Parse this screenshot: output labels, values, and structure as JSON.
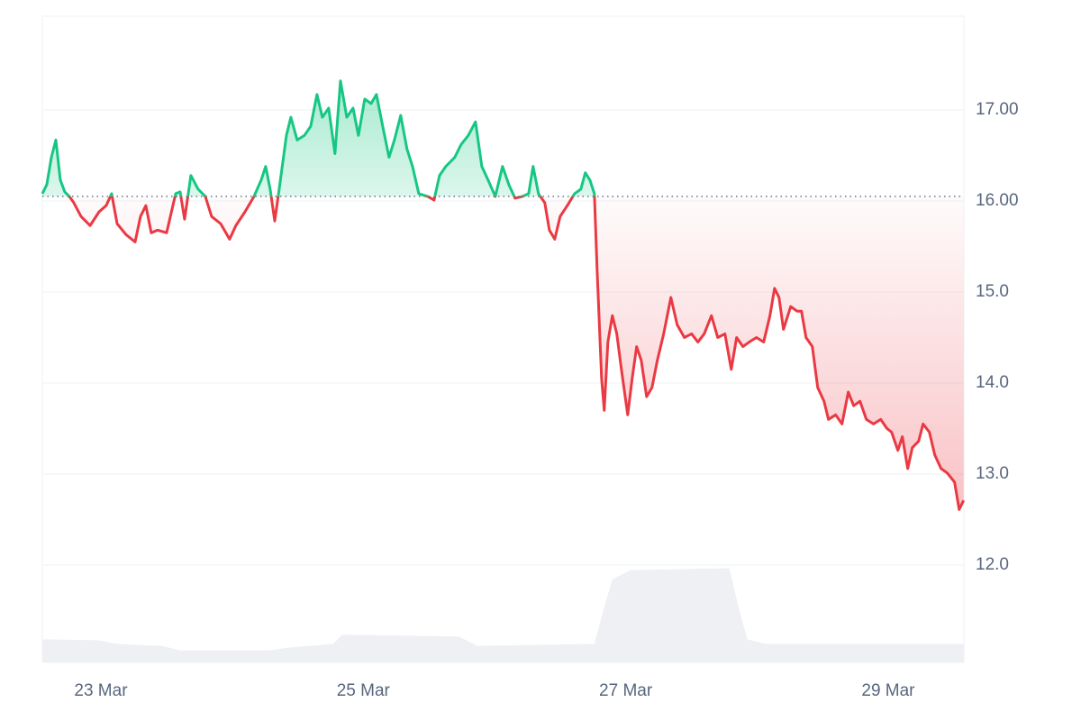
{
  "chart_data": {
    "type": "line",
    "x": [
      22.554,
      22.588,
      22.623,
      22.657,
      22.691,
      22.725,
      22.76,
      22.794,
      22.849,
      22.918,
      22.986,
      23.041,
      23.082,
      23.124,
      23.192,
      23.261,
      23.302,
      23.343,
      23.384,
      23.432,
      23.501,
      23.57,
      23.604,
      23.638,
      23.686,
      23.741,
      23.796,
      23.844,
      23.913,
      23.981,
      24.029,
      24.098,
      24.167,
      24.222,
      24.256,
      24.29,
      24.325,
      24.359,
      24.414,
      24.448,
      24.496,
      24.551,
      24.599,
      24.647,
      24.688,
      24.736,
      24.784,
      24.826,
      24.874,
      24.922,
      24.963,
      25.011,
      25.059,
      25.1,
      25.148,
      25.196,
      25.237,
      25.285,
      25.333,
      25.375,
      25.423,
      25.491,
      25.539,
      25.581,
      25.629,
      25.697,
      25.745,
      25.8,
      25.855,
      25.903,
      25.951,
      26.006,
      26.061,
      26.109,
      26.157,
      26.212,
      26.26,
      26.294,
      26.335,
      26.383,
      26.418,
      26.459,
      26.5,
      26.555,
      26.61,
      26.658,
      26.692,
      26.727,
      26.761,
      26.782,
      26.816,
      26.836,
      26.864,
      26.898,
      26.932,
      26.967,
      27.015,
      27.049,
      27.083,
      27.118,
      27.159,
      27.2,
      27.241,
      27.289,
      27.344,
      27.392,
      27.447,
      27.502,
      27.55,
      27.598,
      27.653,
      27.701,
      27.756,
      27.804,
      27.845,
      27.893,
      27.941,
      27.996,
      28.051,
      28.099,
      28.134,
      28.168,
      28.202,
      28.257,
      28.305,
      28.339,
      28.374,
      28.422,
      28.463,
      28.511,
      28.545,
      28.6,
      28.648,
      28.696,
      28.737,
      28.785,
      28.834,
      28.888,
      28.943,
      28.991,
      29.026,
      29.074,
      29.108,
      29.149,
      29.184,
      29.232,
      29.266,
      29.314,
      29.355,
      29.403,
      29.451,
      29.506,
      29.541,
      29.575
    ],
    "series": [
      {
        "values": [
          16.08,
          16.18,
          16.48,
          16.67,
          16.23,
          16.1,
          16.05,
          15.98,
          15.83,
          15.73,
          15.88,
          15.95,
          16.08,
          15.75,
          15.63,
          15.55,
          15.83,
          15.95,
          15.65,
          15.68,
          15.65,
          16.08,
          16.1,
          15.8,
          16.28,
          16.13,
          16.05,
          15.83,
          15.75,
          15.58,
          15.73,
          15.88,
          16.05,
          16.23,
          16.38,
          16.13,
          15.78,
          16.13,
          16.72,
          16.92,
          16.67,
          16.72,
          16.82,
          17.17,
          16.92,
          17.02,
          16.52,
          17.32,
          16.92,
          17.02,
          16.72,
          17.12,
          17.07,
          17.17,
          16.82,
          16.48,
          16.67,
          16.94,
          16.57,
          16.38,
          16.08,
          16.05,
          16.01,
          16.28,
          16.38,
          16.48,
          16.62,
          16.72,
          16.87,
          16.38,
          16.23,
          16.05,
          16.38,
          16.18,
          16.03,
          16.05,
          16.08,
          16.38,
          16.08,
          15.98,
          15.68,
          15.58,
          15.83,
          15.95,
          16.08,
          16.13,
          16.31,
          16.23,
          16.08,
          15.24,
          14.05,
          13.7,
          14.45,
          14.74,
          14.54,
          14.15,
          13.65,
          14.05,
          14.4,
          14.25,
          13.85,
          13.95,
          14.25,
          14.54,
          14.94,
          14.64,
          14.5,
          14.54,
          14.45,
          14.54,
          14.74,
          14.5,
          14.54,
          14.15,
          14.5,
          14.4,
          14.45,
          14.5,
          14.45,
          14.74,
          15.04,
          14.94,
          14.59,
          14.84,
          14.79,
          14.79,
          14.5,
          14.4,
          13.95,
          13.8,
          13.6,
          13.65,
          13.55,
          13.9,
          13.75,
          13.8,
          13.6,
          13.55,
          13.6,
          13.5,
          13.46,
          13.26,
          13.41,
          13.06,
          13.29,
          13.36,
          13.55,
          13.46,
          13.21,
          13.06,
          13.01,
          12.91,
          12.61,
          12.71
        ]
      }
    ],
    "baseline": 16.05,
    "up_color": "#16c784",
    "down_color": "#ea3943",
    "volume": {
      "color": "#eef0f3",
      "x": [
        22.554,
        22.986,
        23.124,
        23.467,
        23.604,
        24.29,
        24.428,
        24.771,
        24.839,
        25.731,
        25.869,
        26.761,
        26.816,
        26.898,
        27.035,
        27.79,
        27.859,
        27.927,
        28.065,
        29.575
      ],
      "values": [
        25,
        24,
        20,
        18,
        13,
        13,
        16,
        20,
        30,
        28,
        18,
        20,
        50,
        90,
        100,
        102,
        60,
        25,
        20,
        20
      ],
      "ylim": [
        0,
        700
      ]
    },
    "xlim": [
      22.554,
      29.577
    ],
    "xticks": [
      {
        "value": 23,
        "label": "23 Mar"
      },
      {
        "value": 25,
        "label": "25 Mar"
      },
      {
        "value": 27,
        "label": "27 Mar"
      },
      {
        "value": 29,
        "label": "29 Mar"
      }
    ],
    "ylim": [
      10.93,
      18.03
    ],
    "yticks": [
      {
        "value": 17,
        "label": "17.00"
      },
      {
        "value": 16,
        "label": "16.00"
      },
      {
        "value": 15,
        "label": "15.0"
      },
      {
        "value": 14,
        "label": "14.0"
      },
      {
        "value": 13,
        "label": "13.0"
      },
      {
        "value": 12,
        "label": "12.0"
      }
    ],
    "grid": true
  }
}
